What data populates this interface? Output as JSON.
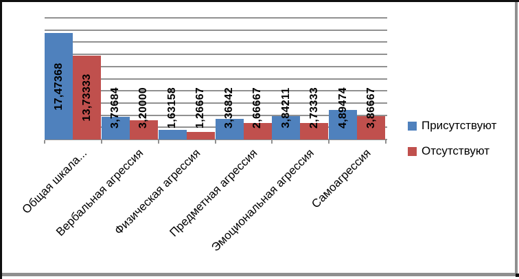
{
  "chart_data": {
    "type": "bar",
    "title": "",
    "xlabel": "",
    "ylabel": "",
    "categories": [
      "Общая шкала...",
      "Вербальная агрессия",
      "Физическая агрессия",
      "Предметная агрессия",
      "Эмоциональная агрессия",
      "Самоагрессия"
    ],
    "series": [
      {
        "name": "Присутствуют",
        "color": "#4F81BD",
        "values": [
          17.47368,
          3.73684,
          1.63158,
          3.36842,
          3.84211,
          4.89474
        ],
        "value_labels": [
          "17,47368",
          "3,73684",
          "1,63158",
          "3,36842",
          "3,84211",
          "4,89474"
        ]
      },
      {
        "name": "Отсутствуют",
        "color": "#C0504D",
        "values": [
          13.73333,
          3.2,
          1.26667,
          2.66667,
          2.73333,
          3.86667
        ],
        "value_labels": [
          "13,73333",
          "3,20000",
          "1,26667",
          "2,66667",
          "2,73333",
          "3,86667"
        ]
      }
    ],
    "ylim": [
      0,
      20
    ],
    "grid_step": 2,
    "grid": true,
    "y_tick_labels_visible": false,
    "legend_position": "right",
    "decimal_separator": ","
  },
  "colors": {
    "series_present": "#4F81BD",
    "series_absent": "#C0504D",
    "gridline": "#909090",
    "frame_dark": "#101010",
    "frame_shadow": "#8F8F8F",
    "background": "#FFFFFF"
  }
}
